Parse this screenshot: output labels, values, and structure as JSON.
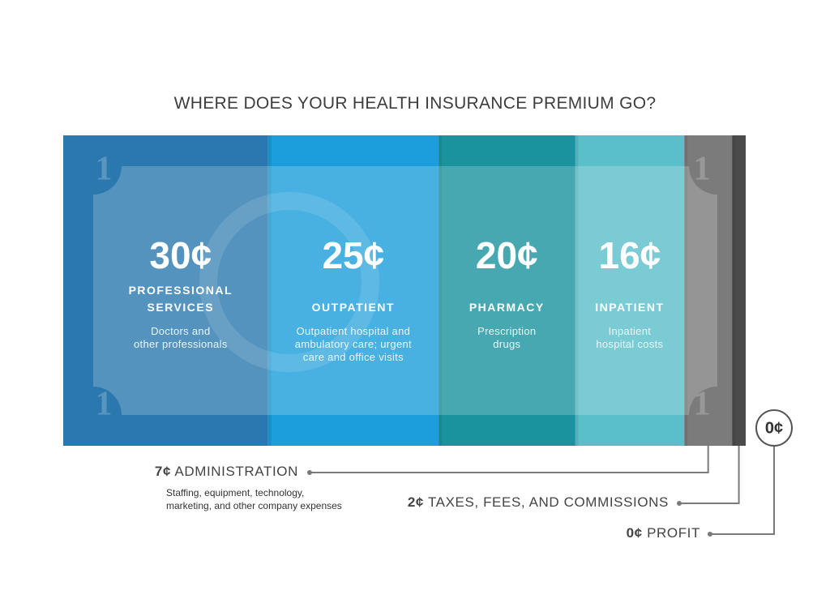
{
  "chart_data": {
    "type": "dollar-bill",
    "title": "WHERE DOES YOUR HEALTH INSURANCE PREMIUM GO?",
    "denomination": 1,
    "categories": [
      "PROFESSIONAL SERVICES",
      "OUTPATIENT",
      "PHARMACY",
      "INPATIENT",
      "ADMINISTRATION",
      "TAXES, FEES, AND COMMISSIONS",
      "PROFIT"
    ],
    "values": [
      30,
      25,
      20,
      16,
      7,
      2,
      0
    ],
    "value_labels": [
      "30¢",
      "25¢",
      "20¢",
      "16¢",
      "7¢",
      "2¢",
      "0¢"
    ],
    "descriptions": [
      [
        "Doctors and",
        "other professionals"
      ],
      [
        "Outpatient hospital and",
        "ambulatory care; urgent",
        "care and office visits"
      ],
      [
        "Prescription",
        "drugs"
      ],
      [
        "Inpatient",
        "hospital costs"
      ],
      [
        "Staffing, equipment, technology,",
        "marketing, and other company expenses"
      ],
      [],
      []
    ],
    "colors": [
      "#2a78ae",
      "#1b9edb",
      "#1a939e",
      "#5bbfca",
      "#7b7b7b",
      "#4b4b4b",
      "#555555"
    ]
  }
}
